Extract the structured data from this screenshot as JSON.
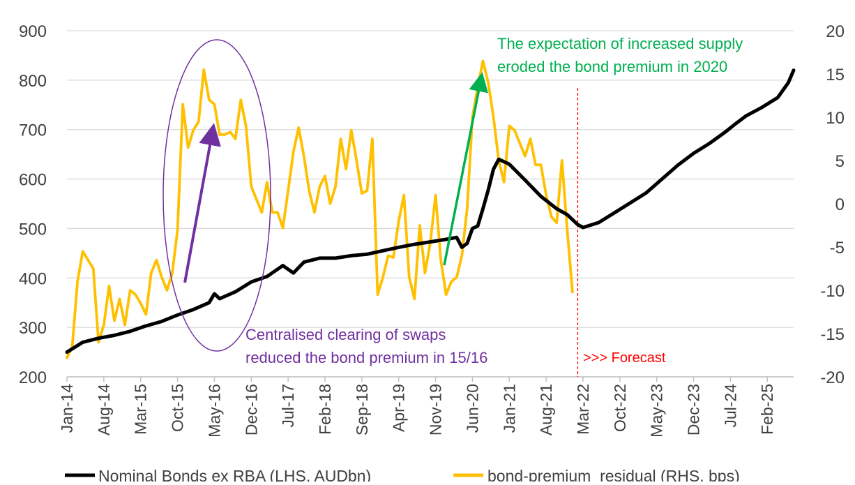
{
  "colors": {
    "nominal": "#000000",
    "premium": "#FFC000",
    "purple": "#7030A0",
    "green": "#00B050",
    "forecast": "#FF0000",
    "grid": "#D9D9D9",
    "text": "#404040"
  },
  "chart_data": {
    "type": "line",
    "title": "",
    "y_left": {
      "min": 200,
      "max": 900,
      "step": 100,
      "ticks": [
        "200",
        "300",
        "400",
        "500",
        "600",
        "700",
        "800",
        "900"
      ]
    },
    "y_right": {
      "min": -20,
      "max": 20,
      "step": 5,
      "ticks": [
        "-20",
        "-15",
        "-10",
        "-5",
        "0",
        "5",
        "10",
        "15",
        "20"
      ]
    },
    "x_axis": {
      "start": "Jan-14",
      "end": "Jul-25",
      "tick_labels": [
        "Jan-14",
        "Aug-14",
        "Mar-15",
        "Oct-15",
        "May-16",
        "Dec-16",
        "Jul-17",
        "Feb-18",
        "Sep-18",
        "Apr-19",
        "Nov-19",
        "Jun-20",
        "Jan-21",
        "Aug-21",
        "Mar-22",
        "Oct-22",
        "May-23",
        "Dec-23",
        "Jul-24",
        "Feb-25"
      ],
      "tick_step_months": 7
    },
    "series": [
      {
        "name": "Nominal Bonds ex RBA (LHS, AUDbn)",
        "axis": "left",
        "points": [
          [
            "Jan-14",
            250
          ],
          [
            "Apr-14",
            270
          ],
          [
            "Jul-14",
            278
          ],
          [
            "Oct-14",
            284
          ],
          [
            "Jan-15",
            292
          ],
          [
            "Apr-15",
            303
          ],
          [
            "Jul-15",
            312
          ],
          [
            "Oct-15",
            325
          ],
          [
            "Jan-16",
            336
          ],
          [
            "Apr-16",
            350
          ],
          [
            "May-16",
            368
          ],
          [
            "Jun-16",
            358
          ],
          [
            "Sep-16",
            372
          ],
          [
            "Dec-16",
            392
          ],
          [
            "Mar-17",
            403
          ],
          [
            "Jun-17",
            425
          ],
          [
            "Aug-17",
            410
          ],
          [
            "Oct-17",
            432
          ],
          [
            "Jan-18",
            440
          ],
          [
            "Apr-18",
            440
          ],
          [
            "Jul-18",
            445
          ],
          [
            "Oct-18",
            448
          ],
          [
            "Jan-19",
            455
          ],
          [
            "Apr-19",
            462
          ],
          [
            "Jul-19",
            468
          ],
          [
            "Oct-19",
            473
          ],
          [
            "Jan-20",
            478
          ],
          [
            "Mar-20",
            482
          ],
          [
            "Apr-20",
            462
          ],
          [
            "May-20",
            470
          ],
          [
            "Jun-20",
            500
          ],
          [
            "Jul-20",
            505
          ],
          [
            "Aug-20",
            540
          ],
          [
            "Sep-20",
            578
          ],
          [
            "Oct-20",
            620
          ],
          [
            "Nov-20",
            640
          ],
          [
            "Jan-21",
            630
          ],
          [
            "Apr-21",
            598
          ],
          [
            "Jul-21",
            565
          ],
          [
            "Oct-21",
            540
          ],
          [
            "Dec-21",
            528
          ],
          [
            "Feb-22",
            508
          ],
          [
            "Mar-22",
            502
          ],
          [
            "Jun-22",
            512
          ],
          [
            "Sep-22",
            532
          ],
          [
            "Dec-22",
            552
          ],
          [
            "Mar-23",
            572
          ],
          [
            "Jun-23",
            600
          ],
          [
            "Sep-23",
            628
          ],
          [
            "Dec-23",
            652
          ],
          [
            "Mar-24",
            672
          ],
          [
            "Jun-24",
            695
          ],
          [
            "Aug-24",
            712
          ],
          [
            "Oct-24",
            728
          ],
          [
            "Jan-25",
            745
          ],
          [
            "Apr-25",
            765
          ],
          [
            "Jun-25",
            795
          ],
          [
            "Jul-25",
            820
          ]
        ]
      },
      {
        "name": "bond-premium  residual (RHS, bps)",
        "axis": "right",
        "points": [
          [
            "Jan-14",
            -17.8
          ],
          [
            "Feb-14",
            -16.5
          ],
          [
            "Mar-14",
            -9
          ],
          [
            "Apr-14",
            -5.5
          ],
          [
            "May-14",
            -6.5
          ],
          [
            "Jun-14",
            -7.5
          ],
          [
            "Jul-14",
            -16
          ],
          [
            "Aug-14",
            -14
          ],
          [
            "Sep-14",
            -9.5
          ],
          [
            "Oct-14",
            -13.5
          ],
          [
            "Nov-14",
            -11
          ],
          [
            "Dec-14",
            -14
          ],
          [
            "Jan-15",
            -10
          ],
          [
            "Feb-15",
            -10.5
          ],
          [
            "Mar-15",
            -11.5
          ],
          [
            "Apr-15",
            -12.8
          ],
          [
            "May-15",
            -8
          ],
          [
            "Jun-15",
            -6.5
          ],
          [
            "Jul-15",
            -8.5
          ],
          [
            "Aug-15",
            -10
          ],
          [
            "Sep-15",
            -8
          ],
          [
            "Oct-15",
            -3
          ],
          [
            "Nov-15",
            11.5
          ],
          [
            "Dec-15",
            6.5
          ],
          [
            "Jan-16",
            8.5
          ],
          [
            "Feb-16",
            9.5
          ],
          [
            "Mar-16",
            15.5
          ],
          [
            "Apr-16",
            12
          ],
          [
            "May-16",
            11.5
          ],
          [
            "Jun-16",
            8
          ],
          [
            "Jul-16",
            8
          ],
          [
            "Aug-16",
            8.3
          ],
          [
            "Sep-16",
            7.5
          ],
          [
            "Oct-16",
            12
          ],
          [
            "Nov-16",
            9
          ],
          [
            "Dec-16",
            2
          ],
          [
            "Jan-17",
            0.5
          ],
          [
            "Feb-17",
            -1
          ],
          [
            "Mar-17",
            2.5
          ],
          [
            "Apr-17",
            -1
          ],
          [
            "May-17",
            -1
          ],
          [
            "Jun-17",
            -2.8
          ],
          [
            "Jul-17",
            1.5
          ],
          [
            "Aug-17",
            6
          ],
          [
            "Sep-17",
            8.8
          ],
          [
            "Oct-17",
            5.5
          ],
          [
            "Nov-17",
            1.5
          ],
          [
            "Dec-17",
            -1
          ],
          [
            "Jan-18",
            2
          ],
          [
            "Feb-18",
            3.2
          ],
          [
            "Mar-18",
            0
          ],
          [
            "Apr-18",
            2
          ],
          [
            "May-18",
            7.5
          ],
          [
            "Jun-18",
            4
          ],
          [
            "Jul-18",
            8.5
          ],
          [
            "Aug-18",
            5
          ],
          [
            "Sep-18",
            1.2
          ],
          [
            "Oct-18",
            1.5
          ],
          [
            "Nov-18",
            7.5
          ],
          [
            "Dec-18",
            -10.5
          ],
          [
            "Jan-19",
            -8.5
          ],
          [
            "Feb-19",
            -6
          ],
          [
            "Mar-19",
            -6.2
          ],
          [
            "Apr-19",
            -2
          ],
          [
            "May-19",
            1
          ],
          [
            "Jun-19",
            -8.5
          ],
          [
            "Jul-19",
            -11
          ],
          [
            "Aug-19",
            -2.5
          ],
          [
            "Sep-19",
            -8
          ],
          [
            "Oct-19",
            -4.5
          ],
          [
            "Nov-19",
            1
          ],
          [
            "Dec-19",
            -6.5
          ],
          [
            "Jan-20",
            -10.5
          ],
          [
            "Feb-20",
            -9
          ],
          [
            "Mar-20",
            -8.5
          ],
          [
            "Apr-20",
            -6
          ],
          [
            "May-20",
            -0.5
          ],
          [
            "Jun-20",
            10
          ],
          [
            "Jul-20",
            13.5
          ],
          [
            "Aug-20",
            16.5
          ],
          [
            "Sep-20",
            14
          ],
          [
            "Oct-20",
            10
          ],
          [
            "Nov-20",
            5
          ],
          [
            "Dec-20",
            2.5
          ],
          [
            "Jan-21",
            9
          ],
          [
            "Feb-21",
            8.5
          ],
          [
            "Mar-21",
            7
          ],
          [
            "Apr-21",
            5.5
          ],
          [
            "May-21",
            7.5
          ],
          [
            "Jun-21",
            4.5
          ],
          [
            "Jul-21",
            4.5
          ],
          [
            "Aug-21",
            1
          ],
          [
            "Sep-21",
            -1.5
          ],
          [
            "Oct-21",
            -2.2
          ],
          [
            "Nov-21",
            5
          ],
          [
            "Dec-21",
            -3
          ],
          [
            "Jan-22",
            -10.2
          ]
        ]
      }
    ],
    "forecast_start": "Feb-22",
    "legend": {
      "position": "bottom"
    },
    "grid": true,
    "annotations": {
      "purple_text": [
        "Centralised clearing of swaps",
        "reduced the bond premium in 15/16"
      ],
      "green_text": [
        "The expectation of increased supply",
        "eroded the bond premium in 2020"
      ],
      "forecast_label": ">>> Forecast"
    }
  }
}
